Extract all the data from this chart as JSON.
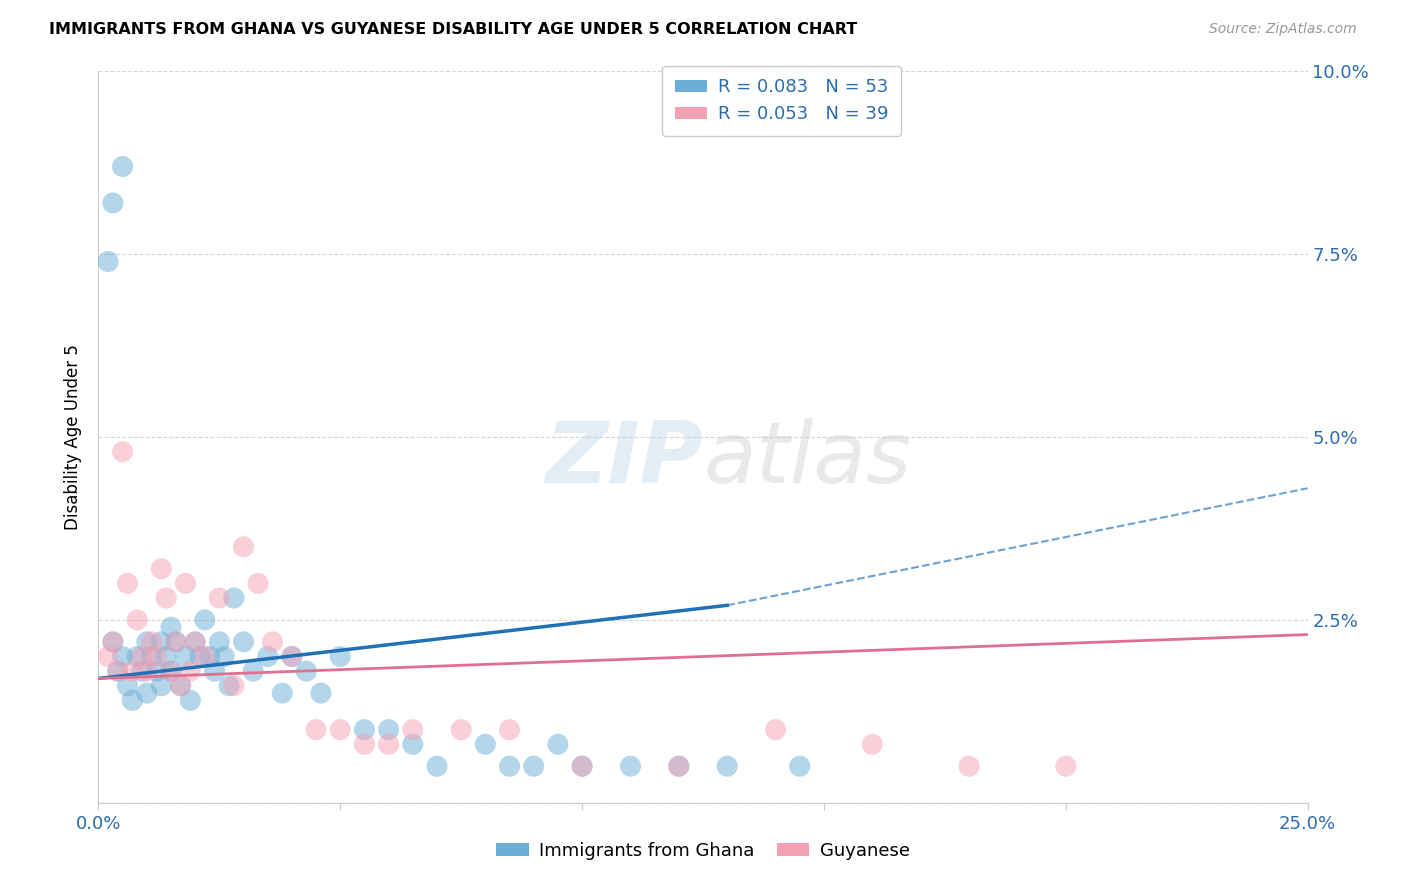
{
  "title": "IMMIGRANTS FROM GHANA VS GUYANESE DISABILITY AGE UNDER 5 CORRELATION CHART",
  "source": "Source: ZipAtlas.com",
  "ylabel": "Disability Age Under 5",
  "xlim": [
    0.0,
    0.25
  ],
  "ylim": [
    0.0,
    0.1
  ],
  "xticks": [
    0.0,
    0.05,
    0.1,
    0.15,
    0.2,
    0.25
  ],
  "xticklabels": [
    "0.0%",
    "",
    "",
    "",
    "",
    "25.0%"
  ],
  "yticks": [
    0.0,
    0.025,
    0.05,
    0.075,
    0.1
  ],
  "yticklabels": [
    "",
    "2.5%",
    "5.0%",
    "7.5%",
    "10.0%"
  ],
  "ghana_r": 0.083,
  "ghana_n": 53,
  "guyanese_r": 0.053,
  "guyanese_n": 39,
  "ghana_color": "#6baed6",
  "guyanese_color": "#f4a0b5",
  "ghana_line_color": "#2171b5",
  "guyanese_line_color": "#e07090",
  "legend_labels": [
    "Immigrants from Ghana",
    "Guyanese"
  ],
  "watermark_text": "ZIPatlas",
  "ghana_x": [
    0.003,
    0.005,
    0.002,
    0.003,
    0.004,
    0.005,
    0.006,
    0.007,
    0.008,
    0.009,
    0.01,
    0.01,
    0.011,
    0.012,
    0.013,
    0.013,
    0.014,
    0.015,
    0.015,
    0.016,
    0.017,
    0.018,
    0.019,
    0.02,
    0.021,
    0.022,
    0.023,
    0.024,
    0.025,
    0.026,
    0.027,
    0.028,
    0.03,
    0.032,
    0.035,
    0.038,
    0.04,
    0.043,
    0.046,
    0.05,
    0.055,
    0.06,
    0.065,
    0.07,
    0.08,
    0.085,
    0.09,
    0.095,
    0.1,
    0.11,
    0.12,
    0.13,
    0.145
  ],
  "ghana_y": [
    0.082,
    0.087,
    0.074,
    0.022,
    0.018,
    0.02,
    0.016,
    0.014,
    0.02,
    0.018,
    0.022,
    0.015,
    0.02,
    0.018,
    0.022,
    0.016,
    0.02,
    0.024,
    0.018,
    0.022,
    0.016,
    0.02,
    0.014,
    0.022,
    0.02,
    0.025,
    0.02,
    0.018,
    0.022,
    0.02,
    0.016,
    0.028,
    0.022,
    0.018,
    0.02,
    0.015,
    0.02,
    0.018,
    0.015,
    0.02,
    0.01,
    0.01,
    0.008,
    0.005,
    0.008,
    0.005,
    0.005,
    0.008,
    0.005,
    0.005,
    0.005,
    0.005,
    0.005
  ],
  "guyanese_x": [
    0.002,
    0.003,
    0.004,
    0.005,
    0.006,
    0.007,
    0.008,
    0.009,
    0.01,
    0.011,
    0.012,
    0.013,
    0.014,
    0.015,
    0.016,
    0.017,
    0.018,
    0.019,
    0.02,
    0.022,
    0.025,
    0.028,
    0.03,
    0.033,
    0.036,
    0.04,
    0.045,
    0.05,
    0.055,
    0.06,
    0.065,
    0.075,
    0.085,
    0.1,
    0.12,
    0.14,
    0.16,
    0.18,
    0.2
  ],
  "guyanese_y": [
    0.02,
    0.022,
    0.018,
    0.048,
    0.03,
    0.018,
    0.025,
    0.02,
    0.018,
    0.022,
    0.02,
    0.032,
    0.028,
    0.018,
    0.022,
    0.016,
    0.03,
    0.018,
    0.022,
    0.02,
    0.028,
    0.016,
    0.035,
    0.03,
    0.022,
    0.02,
    0.01,
    0.01,
    0.008,
    0.008,
    0.01,
    0.01,
    0.01,
    0.005,
    0.005,
    0.01,
    0.008,
    0.005,
    0.005
  ],
  "ghana_line_x0": 0.0,
  "ghana_line_y0": 0.017,
  "ghana_line_x_solid_end": 0.13,
  "ghana_line_y_solid_end": 0.027,
  "ghana_line_x_dash_end": 0.25,
  "ghana_line_y_dash_end": 0.043,
  "guyanese_line_x0": 0.0,
  "guyanese_line_y0": 0.017,
  "guyanese_line_x_end": 0.25,
  "guyanese_line_y_end": 0.023
}
